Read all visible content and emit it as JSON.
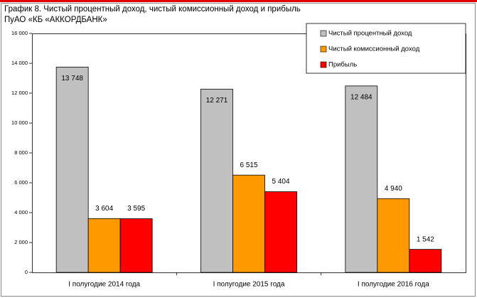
{
  "chart_data": {
    "type": "bar",
    "title": "График 8. Чистый процентный доход, чистый комиссионный доход и прибыль ПуАО «КБ «АККОРДБАНК»",
    "categories": [
      "I полугодие 2014 года",
      "I полугодие 2015 года",
      "I полугодие 2016 года"
    ],
    "series": [
      {
        "name": "Чистый процентный доход",
        "color": "#c0c0c0",
        "values": [
          13748,
          12271,
          12484
        ],
        "value_labels": [
          "13 748",
          "12 271",
          "12 484"
        ]
      },
      {
        "name": "Чистый комиссионный доход",
        "color": "#ff9900",
        "values": [
          3604,
          6515,
          4940
        ],
        "value_labels": [
          "3 604",
          "6 515",
          "4 940"
        ]
      },
      {
        "name": "Прибыль",
        "color": "#ff0000",
        "values": [
          3595,
          5404,
          1542
        ],
        "value_labels": [
          "3 595",
          "5 404",
          "1 542"
        ]
      }
    ],
    "ylim": [
      0,
      16000
    ],
    "yticks": [
      0,
      {
        "value": 2000,
        "label": "2 000"
      },
      {
        "value": 4000,
        "label": "4 000"
      },
      {
        "value": 6000,
        "label": "6 000"
      },
      {
        "value": 8000,
        "label": "8 000"
      },
      {
        "value": 10000,
        "label": "10 000"
      },
      {
        "value": 12000,
        "label": "12 000"
      },
      {
        "value": 14000,
        "label": "14 000"
      },
      {
        "value": 16000,
        "label": "16 000"
      }
    ],
    "legend": "top-right"
  }
}
